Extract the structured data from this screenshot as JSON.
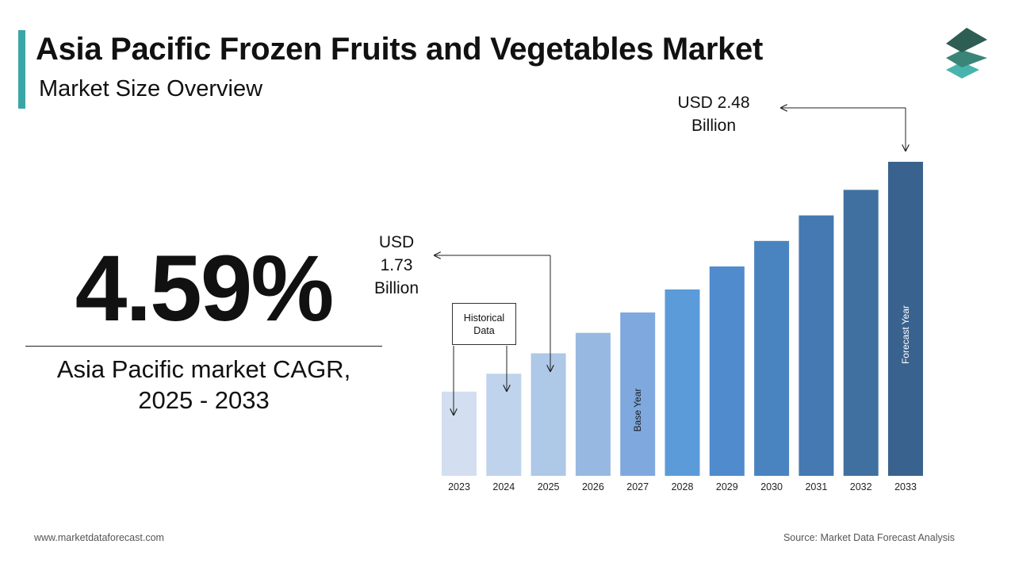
{
  "header": {
    "title": "Asia Pacific Frozen Fruits and Vegetables Market",
    "subtitle": "Market Size Overview"
  },
  "logo": {
    "icon": "stacked-layers-icon",
    "colors": [
      "#2e5d54",
      "#3b8478",
      "#49b4ae"
    ]
  },
  "cagr": {
    "value": "4.59%",
    "label_line1": "Asia Pacific market CAGR,",
    "label_line2": "2025 - 2033"
  },
  "callouts": {
    "start": {
      "line1": "USD",
      "line2": "1.73",
      "line3": "Billion"
    },
    "end": {
      "line1": "USD 2.48",
      "line2": "Billion"
    }
  },
  "historical_box": {
    "line1": "Historical",
    "line2": "Data"
  },
  "chart_data": {
    "type": "bar",
    "categories": [
      "2023",
      "2024",
      "2025",
      "2026",
      "2027",
      "2028",
      "2029",
      "2030",
      "2031",
      "2032",
      "2033"
    ],
    "values": [
      1.58,
      1.65,
      1.73,
      1.81,
      1.89,
      1.98,
      2.07,
      2.17,
      2.27,
      2.37,
      2.48
    ],
    "colors": [
      "#d3dff0",
      "#bfd3ec",
      "#aec8e7",
      "#97b9e1",
      "#7fa9de",
      "#5b9bd9",
      "#4f8bcd",
      "#4a84c0",
      "#4479b2",
      "#40709f",
      "#3a628e"
    ],
    "bar_annotations": [
      {
        "category": "2027",
        "text": "Base Year"
      },
      {
        "category": "2033",
        "text": "Forecast Year"
      }
    ],
    "ylim": [
      1.25,
      2.48
    ],
    "title": "",
    "xlabel": "",
    "ylabel": ""
  },
  "footer": {
    "website": "www.marketdataforecast.com",
    "source": "Source: Market Data Forecast Analysis"
  }
}
